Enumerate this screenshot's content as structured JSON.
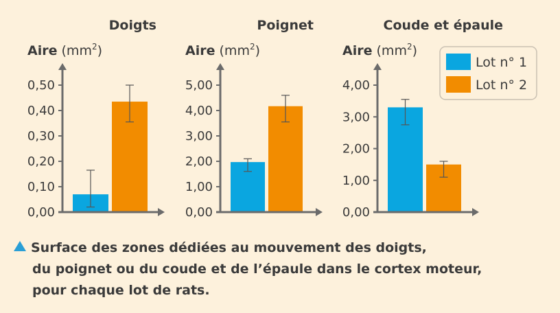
{
  "chart_data": [
    {
      "type": "bar",
      "title": "Doigts",
      "ylabel_text": "Aire (mm",
      "ylabel_sup": "2",
      "ylabel_close": ")",
      "categories": [
        "Lot n° 1",
        "Lot n° 2"
      ],
      "values": [
        0.07,
        0.435
      ],
      "error_low": [
        0.02,
        0.355
      ],
      "error_high": [
        0.165,
        0.5
      ],
      "ylim": [
        0,
        0.5
      ],
      "yticks": [
        "0,00",
        "0,10",
        "0,20",
        "0,30",
        "0,40",
        "0,50"
      ],
      "ytick_values": [
        0,
        0.1,
        0.2,
        0.3,
        0.4,
        0.5
      ]
    },
    {
      "type": "bar",
      "title": "Poignet",
      "ylabel_text": "Aire (mm",
      "ylabel_sup": "2",
      "ylabel_close": ")",
      "categories": [
        "Lot n° 1",
        "Lot n° 2"
      ],
      "values": [
        1.97,
        4.17
      ],
      "error_low": [
        1.6,
        3.55
      ],
      "error_high": [
        2.1,
        4.6
      ],
      "ylim": [
        0,
        5
      ],
      "yticks": [
        "0,00",
        "1,00",
        "2,00",
        "3,00",
        "4,00",
        "5,00"
      ],
      "ytick_values": [
        0,
        1,
        2,
        3,
        4,
        5
      ]
    },
    {
      "type": "bar",
      "title": "Coude et épaule",
      "ylabel_text": "Aire (mm",
      "ylabel_sup": "2",
      "ylabel_close": ")",
      "categories": [
        "Lot n° 1",
        "Lot n° 2"
      ],
      "values": [
        3.3,
        1.5
      ],
      "error_low": [
        2.75,
        1.1
      ],
      "error_high": [
        3.55,
        1.6
      ],
      "ylim": [
        0,
        4
      ],
      "yticks": [
        "0,00",
        "1,00",
        "2,00",
        "3,00",
        "4,00"
      ],
      "ytick_values": [
        0,
        1,
        2,
        3,
        4
      ]
    }
  ],
  "legend": {
    "placement": "top-right",
    "items": [
      {
        "label": "Lot n° 1",
        "color": "#0aa6e0"
      },
      {
        "label": "Lot n° 2",
        "color": "#f28c00"
      }
    ]
  },
  "colors": {
    "background": "#fdf1dc",
    "axis": "#6b6b6b",
    "text": "#3a3a3a",
    "caption_marker": "#2a9fd6"
  },
  "caption": {
    "line1": "Surface des zones dédiées au mouvement des doigts,",
    "line2": "du poignet ou du coude et de l’épaule dans le cortex moteur,",
    "line3": "pour chaque lot de rats."
  }
}
